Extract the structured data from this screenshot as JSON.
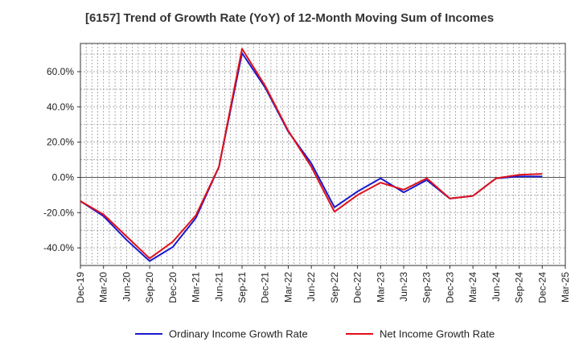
{
  "chart_data": {
    "type": "line",
    "title": "[6157]  Trend of Growth Rate (YoY) of 12-Month Moving Sum of Incomes",
    "xlabel": "",
    "ylabel": "",
    "x_tick_labels": [
      "Dec-19",
      "Mar-20",
      "Jun-20",
      "Sep-20",
      "Dec-20",
      "Mar-21",
      "Jun-21",
      "Sep-21",
      "Dec-21",
      "Mar-22",
      "Jun-22",
      "Sep-22",
      "Dec-22",
      "Mar-23",
      "Jun-23",
      "Sep-23",
      "Dec-23",
      "Mar-24",
      "Jun-24",
      "Sep-24",
      "Dec-24",
      "Mar-25"
    ],
    "y_tick_labels": [
      "60.0%",
      "40.0%",
      "20.0%",
      "0.0%",
      "-20.0%",
      "-40.0%"
    ],
    "y_tick_values": [
      60,
      40,
      20,
      0,
      -20,
      -40
    ],
    "ylim": [
      -50,
      76
    ],
    "grid": true,
    "legend_position": "bottom",
    "series": [
      {
        "name": "Ordinary Income Growth Rate",
        "color": "#1a1acc",
        "values": [
          -13.5,
          -22,
          -35.5,
          -47.5,
          -39.5,
          -23,
          6,
          70.5,
          51,
          26,
          8,
          -17,
          -8,
          -0.5,
          -8.5,
          -1.5,
          -12,
          -10.5,
          -0.5,
          0.5,
          0.5
        ]
      },
      {
        "name": "Net Income Growth Rate",
        "color": "#e0101a",
        "values": [
          -13.5,
          -21,
          -33.5,
          -46,
          -36.5,
          -21.5,
          6,
          73,
          52,
          26.5,
          6,
          -19.5,
          -10,
          -3,
          -7,
          -0.5,
          -12,
          -10.5,
          -0.5,
          1.5,
          2
        ]
      }
    ]
  }
}
